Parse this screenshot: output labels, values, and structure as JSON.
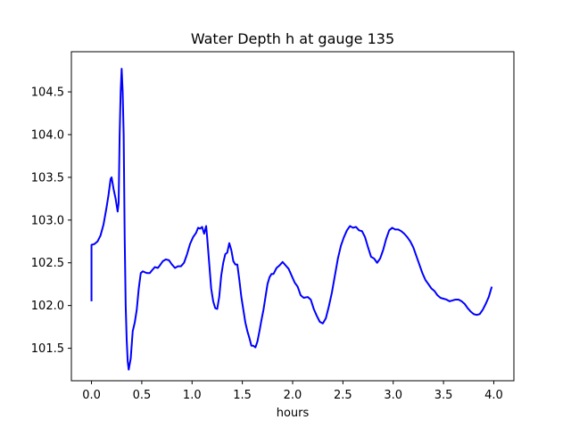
{
  "chart_data": {
    "type": "line",
    "title": "Water Depth h at gauge 135",
    "xlabel": "hours",
    "ylabel": "",
    "xlim": [
      -0.2,
      4.2
    ],
    "ylim": [
      101.12,
      104.97
    ],
    "grid": false,
    "x_ticks": [
      0.0,
      0.5,
      1.0,
      1.5,
      2.0,
      2.5,
      3.0,
      3.5,
      4.0
    ],
    "x_tick_labels": [
      "0.0",
      "0.5",
      "1.0",
      "1.5",
      "2.0",
      "2.5",
      "3.0",
      "3.5",
      "4.0"
    ],
    "y_ticks": [
      101.5,
      102.0,
      102.5,
      103.0,
      103.5,
      104.0,
      104.5
    ],
    "y_tick_labels": [
      "101.5",
      "102.0",
      "102.5",
      "103.0",
      "103.5",
      "104.0",
      "104.5"
    ],
    "series": [
      {
        "color": "#0000ff",
        "points": [
          [
            0.0,
            102.05
          ],
          [
            0.0,
            102.71
          ],
          [
            0.03,
            102.72
          ],
          [
            0.06,
            102.75
          ],
          [
            0.09,
            102.82
          ],
          [
            0.12,
            102.95
          ],
          [
            0.15,
            103.15
          ],
          [
            0.17,
            103.3
          ],
          [
            0.19,
            103.48
          ],
          [
            0.2,
            103.5
          ],
          [
            0.22,
            103.36
          ],
          [
            0.24,
            103.25
          ],
          [
            0.26,
            103.1
          ],
          [
            0.27,
            103.2
          ],
          [
            0.28,
            104.0
          ],
          [
            0.29,
            104.5
          ],
          [
            0.3,
            104.77
          ],
          [
            0.31,
            104.5
          ],
          [
            0.32,
            104.0
          ],
          [
            0.33,
            102.8
          ],
          [
            0.34,
            102.0
          ],
          [
            0.35,
            101.6
          ],
          [
            0.36,
            101.35
          ],
          [
            0.37,
            101.25
          ],
          [
            0.39,
            101.38
          ],
          [
            0.41,
            101.7
          ],
          [
            0.43,
            101.8
          ],
          [
            0.45,
            101.95
          ],
          [
            0.47,
            102.2
          ],
          [
            0.49,
            102.38
          ],
          [
            0.51,
            102.4
          ],
          [
            0.55,
            102.38
          ],
          [
            0.58,
            102.38
          ],
          [
            0.6,
            102.41
          ],
          [
            0.63,
            102.45
          ],
          [
            0.66,
            102.44
          ],
          [
            0.68,
            102.47
          ],
          [
            0.71,
            102.52
          ],
          [
            0.74,
            102.54
          ],
          [
            0.77,
            102.53
          ],
          [
            0.8,
            102.48
          ],
          [
            0.83,
            102.44
          ],
          [
            0.86,
            102.46
          ],
          [
            0.89,
            102.46
          ],
          [
            0.92,
            102.5
          ],
          [
            0.95,
            102.6
          ],
          [
            0.98,
            102.72
          ],
          [
            1.01,
            102.8
          ],
          [
            1.04,
            102.85
          ],
          [
            1.06,
            102.91
          ],
          [
            1.08,
            102.9
          ],
          [
            1.1,
            102.92
          ],
          [
            1.12,
            102.84
          ],
          [
            1.14,
            102.93
          ],
          [
            1.15,
            102.8
          ],
          [
            1.17,
            102.5
          ],
          [
            1.19,
            102.2
          ],
          [
            1.21,
            102.05
          ],
          [
            1.23,
            101.97
          ],
          [
            1.25,
            101.96
          ],
          [
            1.27,
            102.1
          ],
          [
            1.29,
            102.35
          ],
          [
            1.31,
            102.5
          ],
          [
            1.33,
            102.6
          ],
          [
            1.35,
            102.62
          ],
          [
            1.37,
            102.73
          ],
          [
            1.39,
            102.65
          ],
          [
            1.41,
            102.52
          ],
          [
            1.43,
            102.48
          ],
          [
            1.45,
            102.48
          ],
          [
            1.47,
            102.3
          ],
          [
            1.49,
            102.1
          ],
          [
            1.51,
            101.95
          ],
          [
            1.53,
            101.8
          ],
          [
            1.55,
            101.7
          ],
          [
            1.57,
            101.62
          ],
          [
            1.59,
            101.53
          ],
          [
            1.61,
            101.53
          ],
          [
            1.63,
            101.51
          ],
          [
            1.65,
            101.58
          ],
          [
            1.67,
            101.7
          ],
          [
            1.69,
            101.83
          ],
          [
            1.71,
            101.95
          ],
          [
            1.73,
            102.1
          ],
          [
            1.75,
            102.25
          ],
          [
            1.77,
            102.33
          ],
          [
            1.79,
            102.37
          ],
          [
            1.81,
            102.37
          ],
          [
            1.84,
            102.44
          ],
          [
            1.87,
            102.47
          ],
          [
            1.9,
            102.51
          ],
          [
            1.93,
            102.47
          ],
          [
            1.96,
            102.43
          ],
          [
            1.99,
            102.35
          ],
          [
            2.02,
            102.27
          ],
          [
            2.05,
            102.22
          ],
          [
            2.08,
            102.12
          ],
          [
            2.11,
            102.09
          ],
          [
            2.15,
            102.1
          ],
          [
            2.18,
            102.07
          ],
          [
            2.21,
            101.96
          ],
          [
            2.24,
            101.88
          ],
          [
            2.27,
            101.81
          ],
          [
            2.3,
            101.79
          ],
          [
            2.33,
            101.85
          ],
          [
            2.36,
            101.99
          ],
          [
            2.39,
            102.15
          ],
          [
            2.42,
            102.35
          ],
          [
            2.45,
            102.55
          ],
          [
            2.48,
            102.7
          ],
          [
            2.51,
            102.8
          ],
          [
            2.54,
            102.88
          ],
          [
            2.57,
            102.93
          ],
          [
            2.6,
            102.91
          ],
          [
            2.63,
            102.92
          ],
          [
            2.66,
            102.88
          ],
          [
            2.69,
            102.87
          ],
          [
            2.72,
            102.8
          ],
          [
            2.75,
            102.68
          ],
          [
            2.78,
            102.57
          ],
          [
            2.81,
            102.55
          ],
          [
            2.84,
            102.5
          ],
          [
            2.87,
            102.55
          ],
          [
            2.9,
            102.65
          ],
          [
            2.93,
            102.78
          ],
          [
            2.96,
            102.88
          ],
          [
            2.99,
            102.91
          ],
          [
            3.02,
            102.89
          ],
          [
            3.05,
            102.89
          ],
          [
            3.08,
            102.87
          ],
          [
            3.11,
            102.84
          ],
          [
            3.14,
            102.8
          ],
          [
            3.17,
            102.75
          ],
          [
            3.2,
            102.68
          ],
          [
            3.23,
            102.58
          ],
          [
            3.26,
            102.48
          ],
          [
            3.29,
            102.38
          ],
          [
            3.32,
            102.3
          ],
          [
            3.35,
            102.25
          ],
          [
            3.38,
            102.2
          ],
          [
            3.41,
            102.17
          ],
          [
            3.44,
            102.12
          ],
          [
            3.47,
            102.09
          ],
          [
            3.5,
            102.08
          ],
          [
            3.53,
            102.07
          ],
          [
            3.56,
            102.05
          ],
          [
            3.59,
            102.06
          ],
          [
            3.62,
            102.07
          ],
          [
            3.65,
            102.07
          ],
          [
            3.68,
            102.05
          ],
          [
            3.71,
            102.02
          ],
          [
            3.74,
            101.97
          ],
          [
            3.77,
            101.93
          ],
          [
            3.8,
            101.9
          ],
          [
            3.83,
            101.89
          ],
          [
            3.86,
            101.9
          ],
          [
            3.89,
            101.95
          ],
          [
            3.92,
            102.02
          ],
          [
            3.95,
            102.1
          ],
          [
            3.98,
            102.22
          ]
        ]
      }
    ]
  }
}
